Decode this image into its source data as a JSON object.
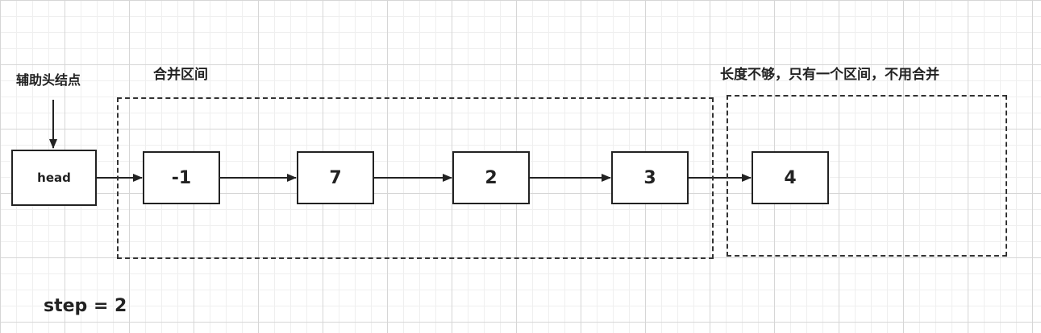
{
  "labels": {
    "aux_head": "辅助头结点",
    "merge_interval": "合并区间",
    "short_interval": "长度不够，只有一个区间，不用合并",
    "step": "step = 2"
  },
  "head_node": "head",
  "nodes": [
    "-1",
    "7",
    "2",
    "3",
    "4"
  ]
}
